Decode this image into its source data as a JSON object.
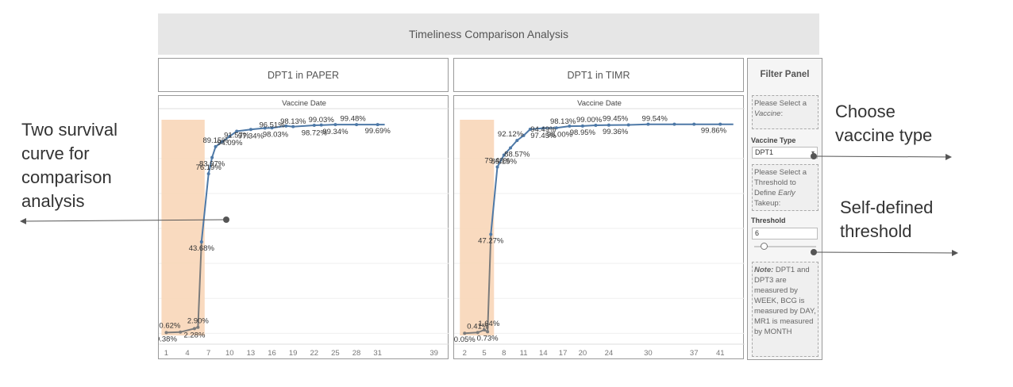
{
  "dashboard": {
    "title": "Timeliness Comparison Analysis"
  },
  "panels": [
    {
      "title": "DPT1 in PAPER"
    },
    {
      "title": "DPT1 in TIMR"
    }
  ],
  "chart_data": [
    {
      "type": "line",
      "title": "",
      "xlabel": "Vaccine Date",
      "ylabel": "",
      "highlight_band_x": [
        1,
        6
      ],
      "highlight_color": "#f8d6b8",
      "line_color": "#4e79a7",
      "early_line_color": "#7b7b7b",
      "x_ticks": [
        1,
        4,
        7,
        10,
        13,
        16,
        19,
        22,
        25,
        28,
        31,
        39
      ],
      "series": [
        {
          "x": [
            1,
            3,
            5,
            5.5,
            6,
            7,
            7.5,
            8,
            9,
            10,
            11,
            13,
            15,
            16,
            18,
            19,
            22,
            23,
            25,
            28,
            31,
            32
          ],
          "values": [
            0.38,
            0.62,
            2.28,
            2.9,
            43.68,
            76.19,
            83.97,
            89.15,
            91.57,
            94.09,
            96.51,
            97.34,
            98.03,
            98.13,
            99.03,
            98.72,
            99.34,
            99.48,
            99.69,
            99.69,
            99.69,
            99.69
          ],
          "labels": [
            {
              "text": "0.38%",
              "x": 1,
              "y": 0.38
            },
            {
              "text": "0.62%",
              "x": 1.5,
              "y": 0.62
            },
            {
              "text": "2.28%",
              "x": 5,
              "y": 2.28
            },
            {
              "text": "2.90%",
              "x": 5.5,
              "y": 2.9
            },
            {
              "text": "43.68%",
              "x": 6,
              "y": 43.68
            },
            {
              "text": "76.19%",
              "x": 7,
              "y": 76.19
            },
            {
              "text": "83.97%",
              "x": 7.5,
              "y": 83.97
            },
            {
              "text": "89.15%",
              "x": 8,
              "y": 89.15
            },
            {
              "text": "94.09%",
              "x": 10,
              "y": 94.09
            },
            {
              "text": "91.57%",
              "x": 11,
              "y": 91.57
            },
            {
              "text": "97.34%",
              "x": 13,
              "y": 97.34
            },
            {
              "text": "96.51%",
              "x": 16,
              "y": 96.51
            },
            {
              "text": "98.03%",
              "x": 16.5,
              "y": 98.03
            },
            {
              "text": "98.13%",
              "x": 19,
              "y": 98.13
            },
            {
              "text": "98.72%",
              "x": 22,
              "y": 98.72
            },
            {
              "text": "99.03%",
              "x": 23,
              "y": 99.03
            },
            {
              "text": "99.34%",
              "x": 25,
              "y": 99.34
            },
            {
              "text": "99.48%",
              "x": 27.5,
              "y": 99.48
            },
            {
              "text": "99.69%",
              "x": 31,
              "y": 99.69
            }
          ]
        }
      ]
    },
    {
      "type": "line",
      "title": "",
      "xlabel": "Vaccine Date",
      "ylabel": "",
      "highlight_band_x": [
        2,
        6
      ],
      "highlight_color": "#f8d6b8",
      "line_color": "#4e79a7",
      "early_line_color": "#7b7b7b",
      "x_ticks": [
        2,
        5,
        8,
        11,
        14,
        17,
        20,
        24,
        30,
        37,
        41
      ],
      "series": [
        {
          "x": [
            2,
            4,
            5,
            5.5,
            6,
            7,
            8,
            9,
            10,
            11,
            12,
            14,
            16,
            18,
            20,
            22,
            24,
            27,
            30,
            34,
            37,
            41,
            43
          ],
          "values": [
            0.05,
            0.41,
            1.64,
            0.73,
            47.27,
            79.46,
            85.15,
            88.57,
            92.12,
            94.49,
            97.45,
            98.0,
            98.13,
            98.95,
            99.0,
            99.36,
            99.45,
            99.54,
            99.86,
            99.86,
            99.86,
            99.86,
            99.86
          ],
          "labels": [
            {
              "text": "0.05%",
              "x": 2,
              "y": 0.05
            },
            {
              "text": "0.41%",
              "x": 4,
              "y": 0.41
            },
            {
              "text": "0.73%",
              "x": 5.5,
              "y": 0.73
            },
            {
              "text": "1.64%",
              "x": 5.7,
              "y": 1.64
            },
            {
              "text": "47.27%",
              "x": 6,
              "y": 47.27
            },
            {
              "text": "79.46%",
              "x": 7,
              "y": 79.46
            },
            {
              "text": "85.15%",
              "x": 8,
              "y": 85.15
            },
            {
              "text": "92.12%",
              "x": 9,
              "y": 92.12
            },
            {
              "text": "88.57%",
              "x": 10,
              "y": 88.57
            },
            {
              "text": "94.49%",
              "x": 14,
              "y": 94.49
            },
            {
              "text": "97.45%",
              "x": 14,
              "y": 97.45
            },
            {
              "text": "98.13%",
              "x": 17,
              "y": 98.13
            },
            {
              "text": "98.00%",
              "x": 16.5,
              "y": 98.0
            },
            {
              "text": "99.00%",
              "x": 21,
              "y": 99.0
            },
            {
              "text": "98.95%",
              "x": 20,
              "y": 98.95
            },
            {
              "text": "99.45%",
              "x": 25,
              "y": 99.45
            },
            {
              "text": "99.36%",
              "x": 25,
              "y": 99.36
            },
            {
              "text": "99.54%",
              "x": 31,
              "y": 99.54
            },
            {
              "text": "99.86%",
              "x": 40,
              "y": 99.86
            }
          ]
        }
      ]
    }
  ],
  "filter_panel": {
    "title": "Filter Panel",
    "prompt_vaccine_pre": "Please Select a",
    "prompt_vaccine_em": "Vaccine",
    "prompt_vaccine_post": ":",
    "vaccine_label": "Vaccine Type",
    "vaccine_value": "DPT1",
    "prompt_threshold_pre": "Please Select a Threshold to Define",
    "prompt_threshold_em": "Early",
    "prompt_threshold_post": "Takeup:",
    "threshold_label": "Threshold",
    "threshold_value": "6",
    "slider_fraction": 0.15,
    "note_em": "Note:",
    "note_text": "DPT1 and DPT3 are measured by WEEK, BCG is measured by DAY, MR1 is measured by MONTH"
  },
  "annotations": {
    "survival_line1": "Two survival",
    "survival_line2": "curve for",
    "survival_line3": "comparison",
    "survival_line4": "analysis",
    "vaccine_line1": "Choose",
    "vaccine_line2": "vaccine type",
    "threshold_line1": "Self-defined",
    "threshold_line2": "threshold"
  }
}
